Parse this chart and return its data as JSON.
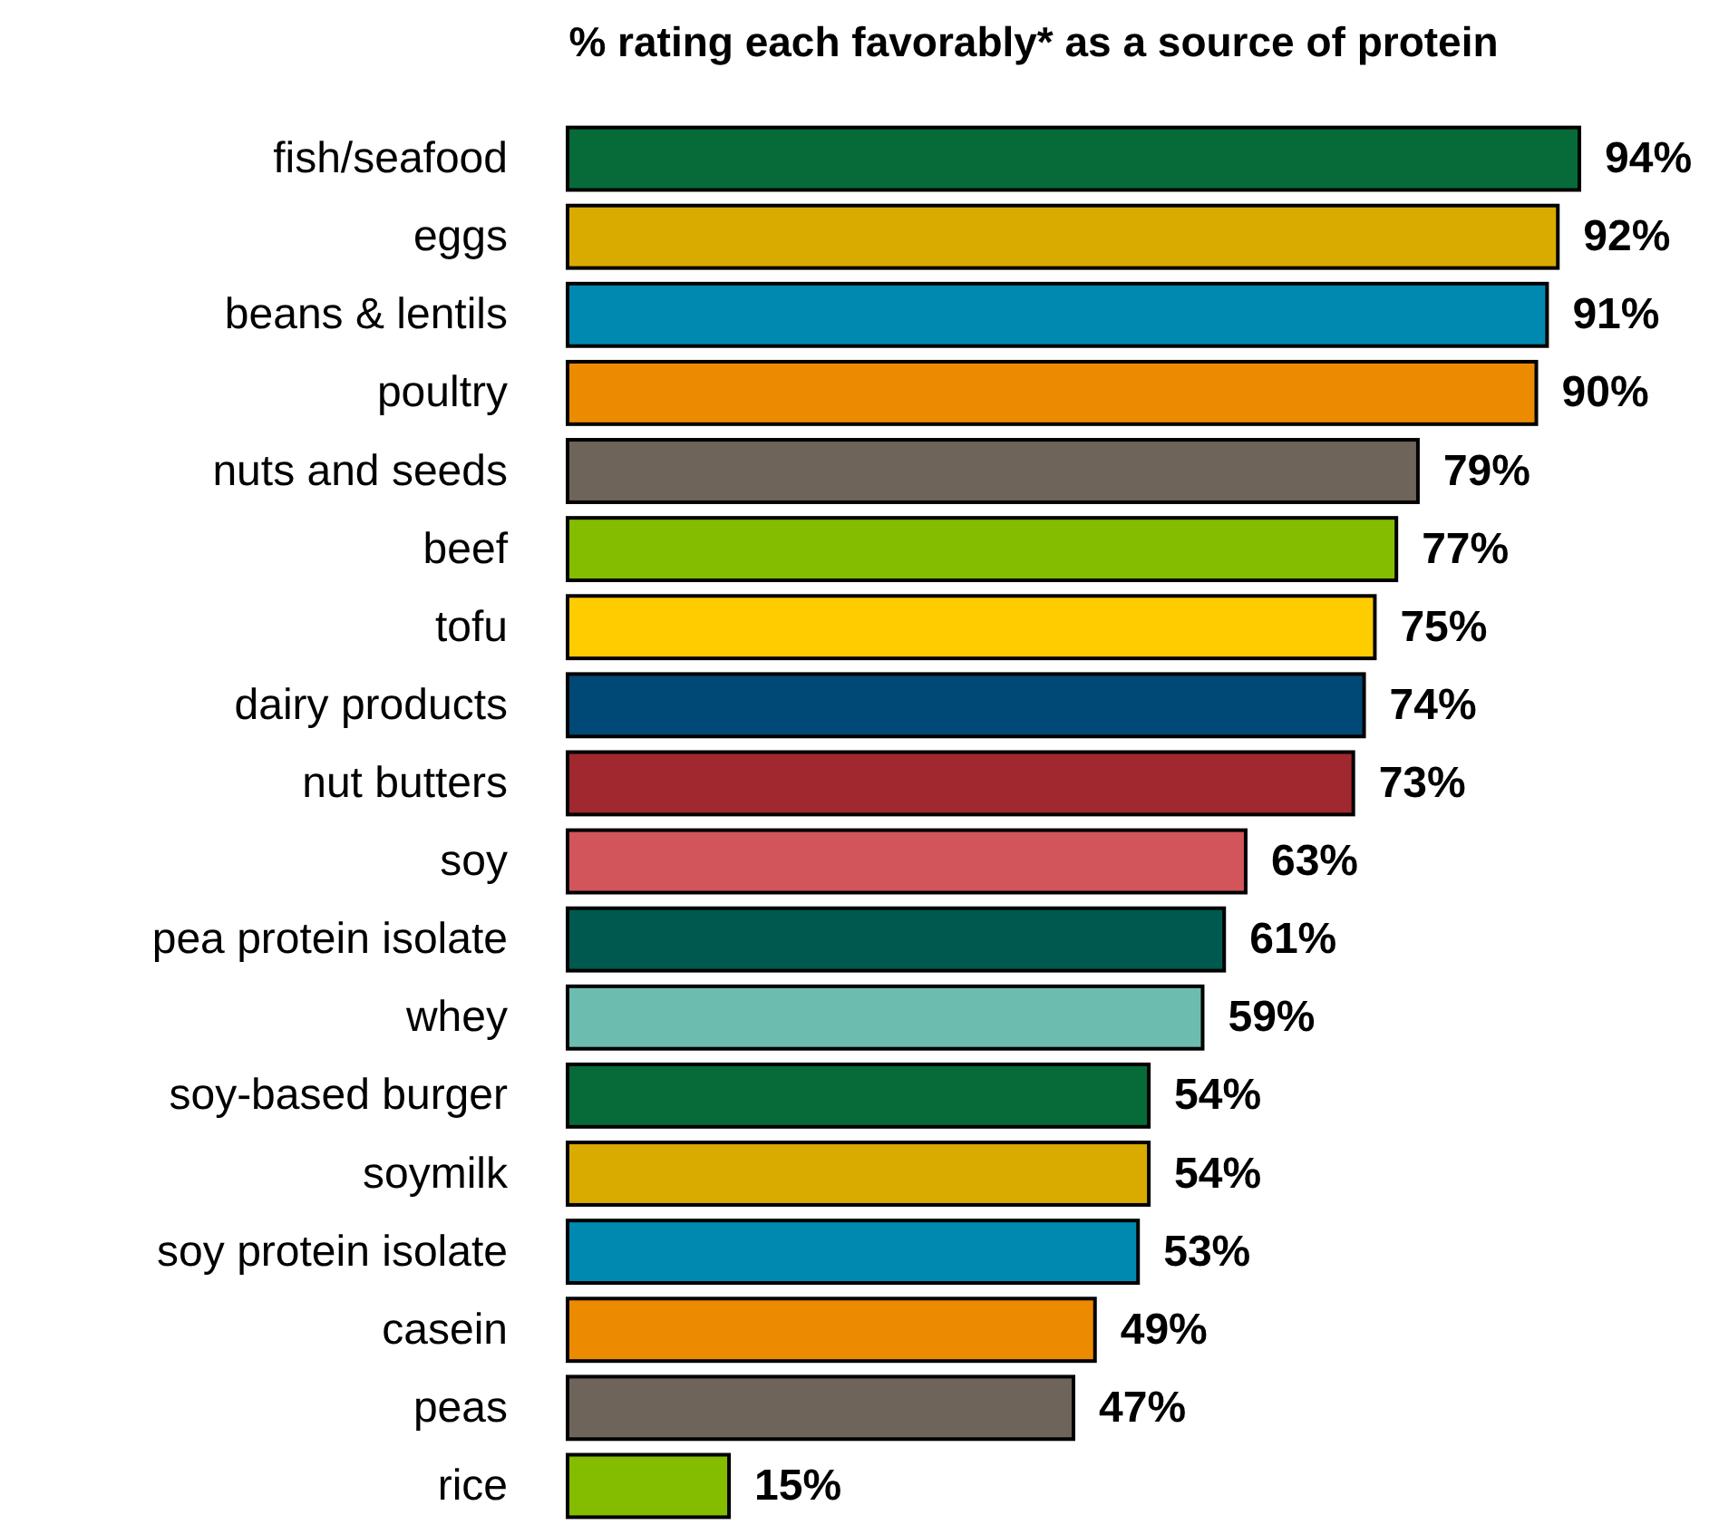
{
  "chart_data": {
    "type": "bar",
    "orientation": "horizontal",
    "title": "% rating each favorably* as a source of protein",
    "categories": [
      "fish/seafood",
      "eggs",
      "beans & lentils",
      "poultry",
      "nuts and seeds",
      "beef",
      "tofu",
      "dairy products",
      "nut butters",
      "soy",
      "pea protein isolate",
      "whey",
      "soy-based burger",
      "soymilk",
      "soy protein isolate",
      "casein",
      "peas",
      "rice"
    ],
    "values": [
      94,
      92,
      91,
      90,
      79,
      77,
      75,
      74,
      73,
      63,
      61,
      59,
      54,
      54,
      53,
      49,
      47,
      15
    ],
    "colors": [
      "#066b38",
      "#d9ab00",
      "#0089b0",
      "#ec8b00",
      "#6e645a",
      "#84bc00",
      "#ffcc00",
      "#004976",
      "#a0282e",
      "#d2555c",
      "#00594f",
      "#6cbcb0",
      "#066b38",
      "#d9ab00",
      "#0089b0",
      "#ec8b00",
      "#6e645a",
      "#84bc00"
    ],
    "value_labels": [
      "94%",
      "92%",
      "91%",
      "90%",
      "79%",
      "77%",
      "75%",
      "74%",
      "73%",
      "63%",
      "61%",
      "59%",
      "54%",
      "54%",
      "53%",
      "49%",
      "47%",
      "15%"
    ]
  }
}
